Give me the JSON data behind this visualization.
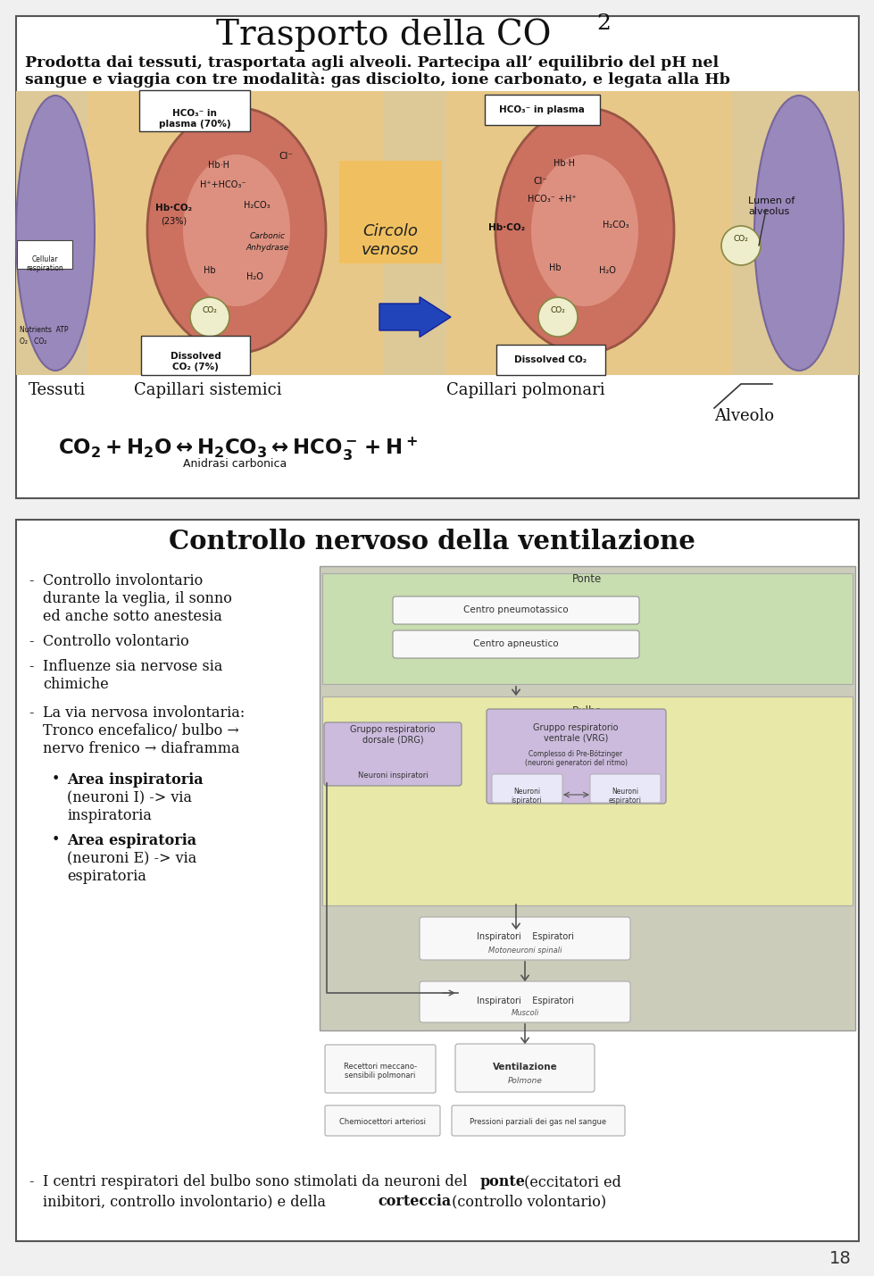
{
  "bg_color": "#f0f0f0",
  "page_num": "18",
  "slide1": {
    "title_main": "Trasporto della CO",
    "title_sub": "2",
    "subtitle_line1": "Prodotta dai tessuti, trasportata agli alveoli. Partecipa all’ equilibrio del pH nel",
    "subtitle_line2": "sangue e viaggia con tre modalità: gas disciolto, ione carbonato, e legata alla Hb",
    "label_tessuti": "Tessuti",
    "label_cap_sis": "Capillari sistemici",
    "label_cap_pol": "Capillari polmonari",
    "label_alveolo": "Alveolo",
    "eq_sub": "Anidrasi carbonica",
    "box_bg": "#ffffff",
    "border_color": "#555555",
    "diag_bg": "#ddc898",
    "rbc_color": "#cc7060",
    "rbc_edge": "#995544",
    "plasma_bg": "#e8c888",
    "purple_cell": "#9988bb",
    "hco3_left": "HCO₃⁻ in\nplasma (70%)",
    "hco3_right": "HCO₃⁻ in plasma",
    "circolo_text": "Circolo\nvenoso",
    "dissolved_left": "Dissolved\nCO₂ (7%)",
    "dissolved_right": "Dissolved CO₂",
    "lumen_text": "Lumen of\nalveolus",
    "co2_circle_text": "CO₂"
  },
  "slide2": {
    "title": "Controllo nervoso della ventilazione",
    "bullet1": "Controllo involontario",
    "bullet1b": "durante la veglia, il sonno",
    "bullet1c": "ed anche sotto anestesia",
    "bullet2": "Controllo volontario",
    "bullet3": "Influenze sia nervose sia",
    "bullet3b": "chimiche",
    "bullet4": "La via nervosa involontaria:",
    "bullet4b": "Tronco encefalico/ bulbo →",
    "bullet4c": "nervo frenico → diaframma",
    "sub1_bold": "Area inspiratoria",
    "sub1_rest": "(neuroni I) -> via",
    "sub1_rest2": "inspiratoria",
    "sub2_bold": "Area espiratoria",
    "sub2_rest": "(neuroni E) -> via",
    "sub2_rest2": "espiratoria",
    "diag_ponte": "Ponte",
    "diag_cp": "Centro pneumotassico",
    "diag_ca": "Centro apneustico",
    "diag_bulbo": "Bulbo",
    "diag_drg": "Gruppo respiratorio\ndorsale (DRG)",
    "diag_drg_sub": "Neuroni inspiratori",
    "diag_vrg": "Gruppo respiratorio\nventrale (VRG)",
    "diag_vrg_sub": "Complesso di Pre-Bötzinger\n(neuroni generatori del ritmo)",
    "diag_ni": "Neuroni\nispiratori",
    "diag_ne": "Neuroni\nespiratori",
    "diag_mot": "Inspiratori    Espiratori",
    "diag_mot_sub": "Motoneuroni spinali",
    "diag_musc": "Inspiratori    Espiratori",
    "diag_musc_sub": "Muscoli",
    "diag_vent": "Ventilazione",
    "diag_vent_sub": "Polmone",
    "diag_rec": "Recettori meccano-\nsensibili polmonari",
    "diag_chem": "Chemiocettori arteriosi",
    "diag_parz": "Pressioni parziali dei gas nel sangue",
    "footer_pre": "I centri respiratori del bulbo sono stimolati da neuroni del ",
    "footer_bold1": "ponte",
    "footer_mid": " (eccitatori ed",
    "footer_line2_pre": "inibitori, controllo involontario) e della ",
    "footer_bold2": "corteccia",
    "footer_line2_post": " (controllo volontario)",
    "box_bg": "#ffffff",
    "border_color": "#555555",
    "diag_outer_bg": "#ccccbb",
    "ponte_bg": "#c8ddb0",
    "bulbo_bg": "#e8e8a8",
    "drg_color": "#ccbbdd",
    "vrg_color": "#ccbbdd"
  }
}
